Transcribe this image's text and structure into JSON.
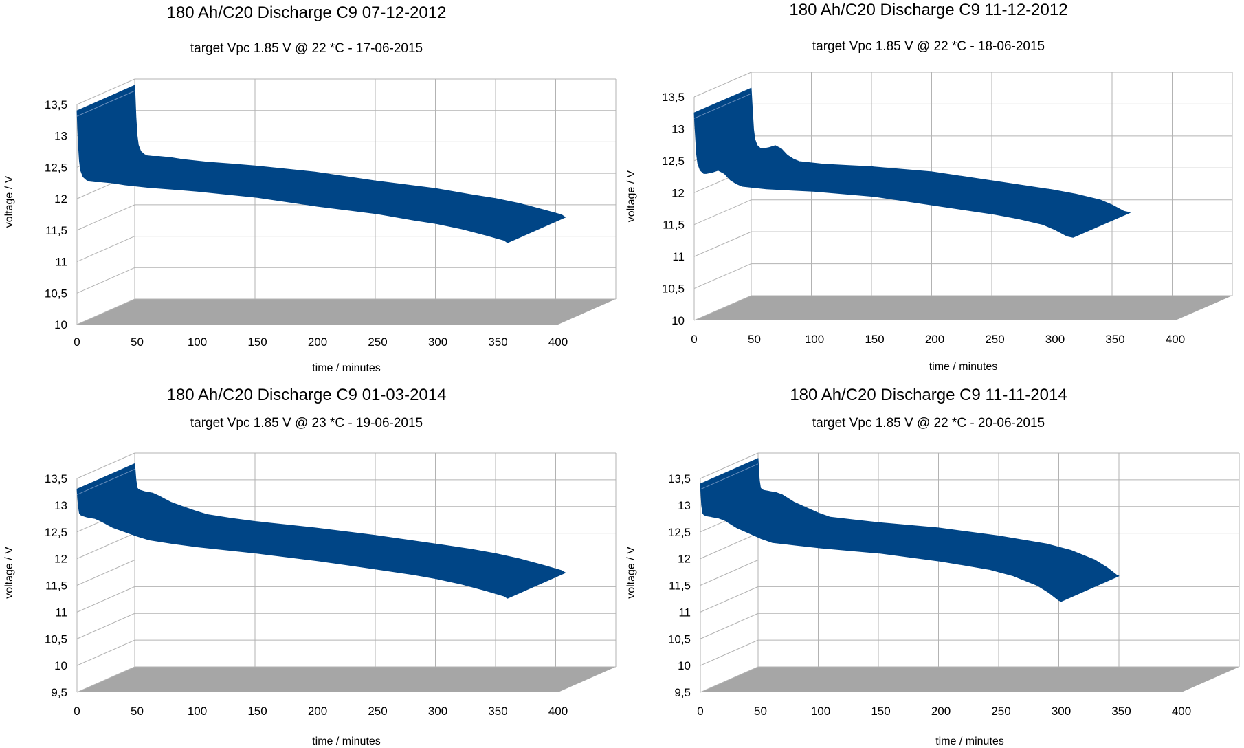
{
  "colors": {
    "series": "#004586",
    "floor": "#a6a6a6",
    "grid": "#b3b3b3",
    "text": "#000000"
  },
  "chart_data": [
    {
      "type": "area",
      "render": "3d-ribbon",
      "title": "180 Ah/C20 Discharge C9 07-12-2012",
      "subtitle": "target Vpc 1.85 V @ 22 *C - 17-06-2015",
      "xlabel": "time / minutes",
      "ylabel": "voltage / V",
      "xlim": [
        0,
        400
      ],
      "ylim": [
        10,
        13.5
      ],
      "xticks": [
        "0",
        "50",
        "100",
        "150",
        "200",
        "250",
        "300",
        "350",
        "400"
      ],
      "yticks": [
        "10",
        "10,5",
        "11",
        "11,5",
        "12",
        "12,5",
        "13",
        "13,5"
      ],
      "series": [
        {
          "name": "voltage",
          "x": [
            0,
            1,
            2,
            3,
            5,
            8,
            10,
            15,
            20,
            25,
            30,
            40,
            50,
            60,
            80,
            100,
            150,
            200,
            250,
            280,
            300,
            320,
            340,
            355,
            358
          ],
          "y": [
            13.4,
            12.9,
            12.6,
            12.45,
            12.35,
            12.3,
            12.28,
            12.27,
            12.27,
            12.26,
            12.25,
            12.22,
            12.2,
            12.18,
            12.15,
            12.12,
            12.02,
            11.88,
            11.76,
            11.66,
            11.6,
            11.52,
            11.42,
            11.34,
            11.3
          ]
        }
      ]
    },
    {
      "type": "area",
      "render": "3d-ribbon",
      "title": "180 Ah/C20 Discharge C9 11-12-2012",
      "subtitle": "target Vpc 1.85 V @ 22 *C - 18-06-2015",
      "xlabel": "time / minutes",
      "ylabel": "voltage / V",
      "xlim": [
        0,
        400
      ],
      "ylim": [
        10,
        13.5
      ],
      "xticks": [
        "0",
        "50",
        "100",
        "150",
        "200",
        "250",
        "300",
        "350",
        "400"
      ],
      "yticks": [
        "10",
        "10,5",
        "11",
        "11,5",
        "12",
        "12,5",
        "13",
        "13,5"
      ],
      "series": [
        {
          "name": "voltage",
          "x": [
            0,
            1,
            2,
            3,
            5,
            8,
            10,
            15,
            20,
            25,
            30,
            35,
            40,
            50,
            60,
            80,
            100,
            150,
            200,
            250,
            270,
            290,
            300,
            310,
            315
          ],
          "y": [
            13.25,
            12.9,
            12.6,
            12.45,
            12.35,
            12.3,
            12.3,
            12.32,
            12.35,
            12.3,
            12.2,
            12.14,
            12.1,
            12.08,
            12.06,
            12.04,
            12.02,
            11.94,
            11.8,
            11.66,
            11.59,
            11.5,
            11.42,
            11.32,
            11.3
          ]
        }
      ]
    },
    {
      "type": "area",
      "render": "3d-ribbon",
      "title": "180 Ah/C20 Discharge C9 01-03-2014",
      "subtitle": "target Vpc 1.85 V @ 23 *C - 19-06-2015",
      "xlabel": "time / minutes",
      "ylabel": "voltage / V",
      "xlim": [
        0,
        400
      ],
      "ylim": [
        9.5,
        13.5
      ],
      "xticks": [
        "0",
        "50",
        "100",
        "150",
        "200",
        "250",
        "300",
        "350",
        "400"
      ],
      "yticks": [
        "9,5",
        "10",
        "10,5",
        "11",
        "11,5",
        "12",
        "12,5",
        "13",
        "13,5"
      ],
      "series": [
        {
          "name": "voltage",
          "x": [
            0,
            1,
            2,
            3,
            5,
            8,
            10,
            15,
            20,
            25,
            30,
            40,
            50,
            60,
            80,
            100,
            150,
            200,
            250,
            280,
            300,
            320,
            340,
            355,
            358
          ],
          "y": [
            13.3,
            13.0,
            12.85,
            12.82,
            12.8,
            12.78,
            12.77,
            12.75,
            12.7,
            12.64,
            12.58,
            12.5,
            12.42,
            12.35,
            12.28,
            12.22,
            12.1,
            11.96,
            11.8,
            11.7,
            11.62,
            11.52,
            11.4,
            11.3,
            11.26
          ]
        }
      ]
    },
    {
      "type": "area",
      "render": "3d-ribbon",
      "title": "180 Ah/C20 Discharge C9 11-11-2014",
      "subtitle": "target Vpc 1.85 V @ 22 *C - 20-06-2015",
      "xlabel": "time / minutes",
      "ylabel": "voltage / V",
      "xlim": [
        0,
        400
      ],
      "ylim": [
        9.5,
        13.5
      ],
      "xticks": [
        "0",
        "50",
        "100",
        "150",
        "200",
        "250",
        "300",
        "350",
        "400"
      ],
      "yticks": [
        "9,5",
        "10",
        "10,5",
        "11",
        "11,5",
        "12",
        "12,5",
        "13",
        "13,5"
      ],
      "series": [
        {
          "name": "voltage",
          "x": [
            0,
            1,
            2,
            3,
            5,
            8,
            10,
            15,
            20,
            25,
            30,
            40,
            50,
            60,
            80,
            100,
            150,
            200,
            240,
            260,
            280,
            290,
            298,
            300
          ],
          "y": [
            13.4,
            13.0,
            12.85,
            12.82,
            12.8,
            12.79,
            12.78,
            12.76,
            12.72,
            12.65,
            12.58,
            12.48,
            12.38,
            12.3,
            12.25,
            12.2,
            12.1,
            11.95,
            11.8,
            11.68,
            11.5,
            11.36,
            11.22,
            11.2
          ]
        }
      ]
    }
  ]
}
